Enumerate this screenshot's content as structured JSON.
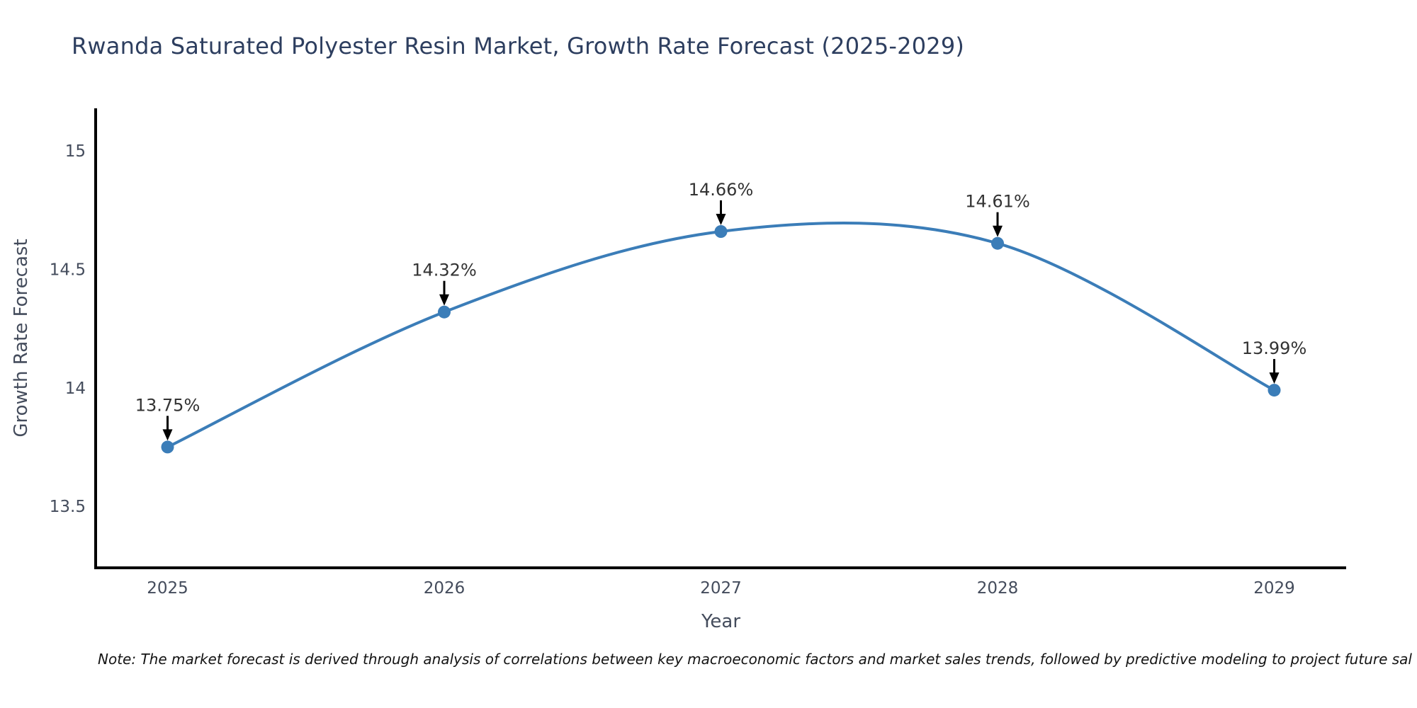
{
  "title": "Rwanda Saturated Polyester Resin Market, Growth Rate Forecast (2025-2029)",
  "note": "Note: The market forecast is derived through analysis of correlations between key macroeconomic factors and market sales trends, followed by predictive modeling to project future sal",
  "chart_data": {
    "type": "line",
    "x": [
      2025,
      2026,
      2027,
      2028,
      2029
    ],
    "values": [
      13.75,
      14.32,
      14.66,
      14.61,
      13.99
    ],
    "point_labels": [
      "13.75%",
      "14.32%",
      "14.66%",
      "14.61%",
      "13.99%"
    ],
    "x_tick_labels": [
      "2025",
      "2026",
      "2027",
      "2028",
      "2029"
    ],
    "y_ticks": [
      13.5,
      14,
      14.5,
      15
    ],
    "y_tick_labels": [
      "13.5",
      "14",
      "14.5",
      "15"
    ],
    "xlabel": "Year",
    "ylabel": "Growth Rate Forecast",
    "xlim": [
      2024.74,
      2029.26
    ],
    "ylim": [
      13.24,
      15.18
    ],
    "grid": false,
    "legend": null,
    "smooth_spline": true,
    "colors": {
      "line": "#3b7db8",
      "marker": "#3b7db8",
      "axis_spine": "#000000",
      "annotation_arrow": "#000000",
      "annotation_text": "#333333",
      "tick_label": "#444c5c",
      "axis_label": "#444c5c"
    }
  }
}
